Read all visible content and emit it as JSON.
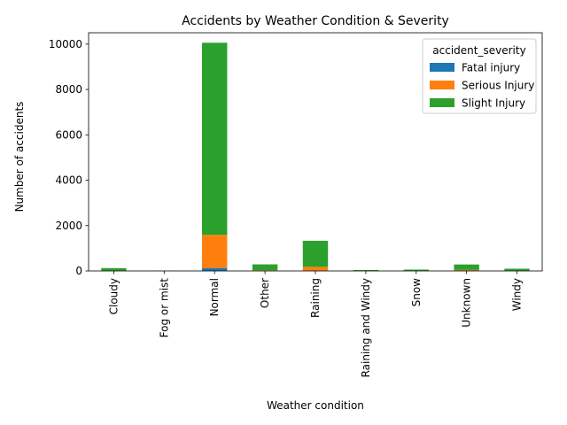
{
  "chart_data": {
    "type": "bar",
    "stacked": true,
    "title": "Accidents by Weather Condition & Severity",
    "xlabel": "Weather condition",
    "ylabel": "Number of accidents",
    "ylim": [
      0,
      10500
    ],
    "yticks": [
      0,
      2000,
      4000,
      6000,
      8000,
      10000
    ],
    "categories": [
      "Cloudy",
      "Fog or mist",
      "Normal",
      "Other",
      "Raining",
      "Raining and Windy",
      "Snow",
      "Unknown",
      "Windy"
    ],
    "legend_title": "accident_severity",
    "legend_position": "top-right",
    "grid": false,
    "series": [
      {
        "name": "Fatal injury",
        "color": "#1f77b4",
        "values": [
          0,
          0,
          130,
          5,
          10,
          0,
          0,
          5,
          0
        ]
      },
      {
        "name": "Serious Injury",
        "color": "#ff7f0e",
        "values": [
          10,
          2,
          1460,
          25,
          170,
          5,
          5,
          40,
          8
        ]
      },
      {
        "name": "Slight Injury",
        "color": "#2ca02c",
        "values": [
          115,
          8,
          8470,
          260,
          1150,
          35,
          55,
          240,
          90
        ]
      }
    ]
  }
}
